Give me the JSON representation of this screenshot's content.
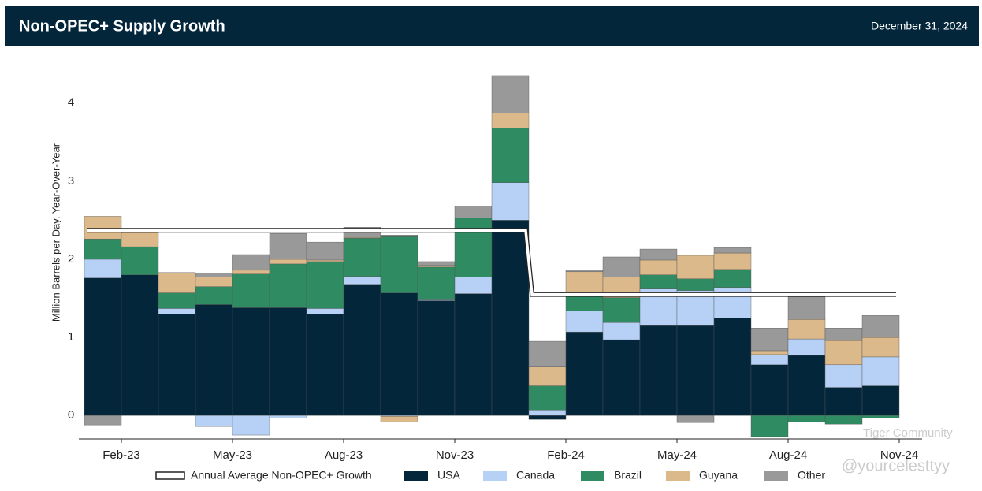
{
  "header": {
    "title": "Non-OPEC+ Supply Growth",
    "date": "December 31, 2024"
  },
  "watermark": [
    "Tiger Community",
    "@yourcelesttyy"
  ],
  "chart_data": {
    "type": "bar",
    "stacked": true,
    "y_label": "Million Barrels per Day, Year-Over-Year",
    "xlim": [
      0,
      22
    ],
    "xticks": [
      {
        "value": 1,
        "label": "Feb-23"
      },
      {
        "value": 4,
        "label": "May-23"
      },
      {
        "value": 7,
        "label": "Aug-23"
      },
      {
        "value": 10,
        "label": "Nov-23"
      },
      {
        "value": 13,
        "label": "Feb-24"
      },
      {
        "value": 16,
        "label": "May-24"
      },
      {
        "value": 19,
        "label": "Aug-24"
      },
      {
        "value": 22,
        "label": "Nov-24"
      }
    ],
    "ylim": [
      -0.3,
      4.4
    ],
    "yticks": [
      0,
      1,
      2,
      3,
      4
    ],
    "series": [
      {
        "name": "Annual Average Non-OPEC+ Growth",
        "type": "step",
        "color": "#ffffff",
        "values": [
          2.37,
          2.37,
          2.37,
          2.37,
          2.37,
          2.37,
          2.37,
          2.37,
          2.37,
          2.37,
          2.37,
          2.37,
          1.55,
          1.55,
          1.55,
          1.55,
          1.55,
          1.55,
          1.55,
          1.55,
          1.55,
          1.55
        ]
      },
      {
        "name": "USA",
        "color": "#03263b",
        "values": [
          1.76,
          1.8,
          1.3,
          1.42,
          1.38,
          1.38,
          1.3,
          1.68,
          1.57,
          1.47,
          1.56,
          2.5,
          -0.05,
          1.07,
          0.97,
          1.15,
          1.15,
          1.25,
          0.65,
          0.77,
          0.36,
          0.38
        ]
      },
      {
        "name": "Canada",
        "color": "#b6d1f5",
        "values": [
          0.24,
          0,
          0.07,
          -0.14,
          -0.25,
          -0.03,
          0.07,
          0.1,
          -0.01,
          0.01,
          0.21,
          0.48,
          0.07,
          0.27,
          0.22,
          0.47,
          0.45,
          0.39,
          0.13,
          0.21,
          0.29,
          0.37
        ]
      },
      {
        "name": "Brazil",
        "color": "#2e8b62",
        "values": [
          0.26,
          0.36,
          0.2,
          0.23,
          0.43,
          0.56,
          0.6,
          0.49,
          0.72,
          0.42,
          0.76,
          0.7,
          0.31,
          0.19,
          0.32,
          0.18,
          0.15,
          0.23,
          -0.27,
          -0.08,
          -0.11,
          -0.03
        ]
      },
      {
        "name": "Guyana",
        "color": "#dbb98a",
        "values": [
          0.29,
          0.18,
          0.26,
          0.12,
          0.05,
          0.06,
          0.02,
          0.01,
          -0.07,
          0.02,
          0,
          0.19,
          0.24,
          0.31,
          0.26,
          0.19,
          0.3,
          0.21,
          0.05,
          0.25,
          0.31,
          0.25
        ]
      },
      {
        "name": "Other",
        "color": "#999999",
        "values": [
          -0.12,
          0.04,
          0,
          0.05,
          0.2,
          0.33,
          0.23,
          0.13,
          0.02,
          0.05,
          0.15,
          0.48,
          0.33,
          0.02,
          0.26,
          0.14,
          -0.09,
          0.07,
          0.29,
          0.29,
          0.16,
          0.28
        ]
      }
    ]
  }
}
